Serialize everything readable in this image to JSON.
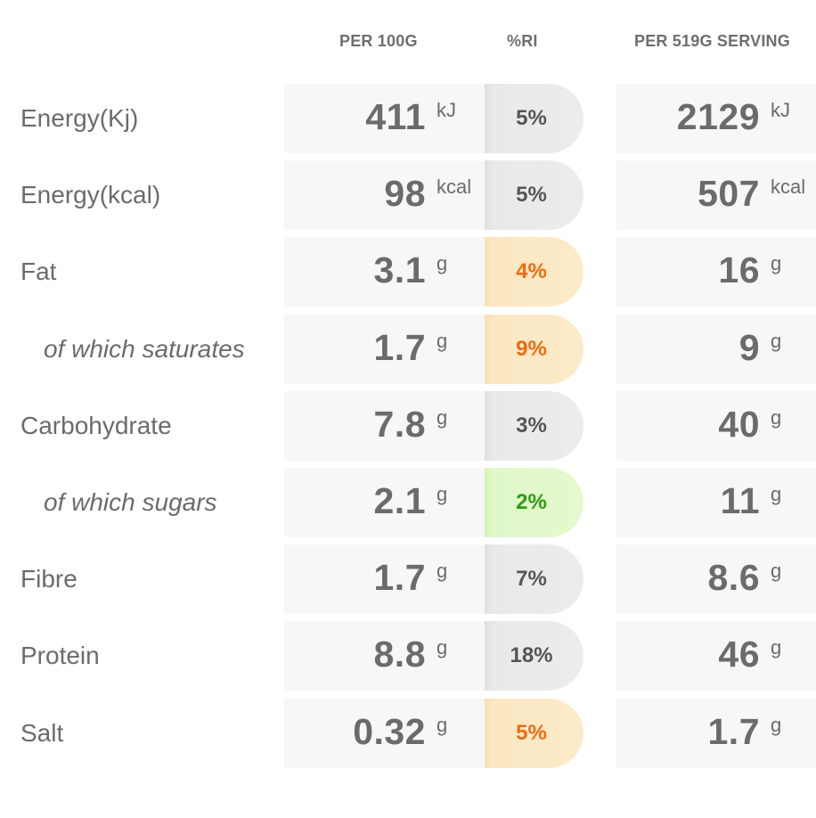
{
  "headers": {
    "per_100g": "PER 100G",
    "ri": "%RI",
    "per_serving": "PER 519G SERVING"
  },
  "rows": [
    {
      "label": "Energy(Kj)",
      "sub": false,
      "per100_value": "411",
      "per100_unit": "kJ",
      "ri": "5%",
      "ri_level": "grey",
      "serving_value": "2129",
      "serving_unit": "kJ"
    },
    {
      "label": "Energy(kcal)",
      "sub": false,
      "per100_value": "98",
      "per100_unit": "kcal",
      "ri": "5%",
      "ri_level": "grey",
      "serving_value": "507",
      "serving_unit": "kcal"
    },
    {
      "label": "Fat",
      "sub": false,
      "per100_value": "3.1",
      "per100_unit": "g",
      "ri": "4%",
      "ri_level": "amber",
      "serving_value": "16",
      "serving_unit": "g"
    },
    {
      "label": "of which saturates",
      "sub": true,
      "per100_value": "1.7",
      "per100_unit": "g",
      "ri": "9%",
      "ri_level": "amber",
      "serving_value": "9",
      "serving_unit": "g"
    },
    {
      "label": "Carbohydrate",
      "sub": false,
      "per100_value": "7.8",
      "per100_unit": "g",
      "ri": "3%",
      "ri_level": "grey",
      "serving_value": "40",
      "serving_unit": "g"
    },
    {
      "label": "of which sugars",
      "sub": true,
      "per100_value": "2.1",
      "per100_unit": "g",
      "ri": "2%",
      "ri_level": "green",
      "serving_value": "11",
      "serving_unit": "g"
    },
    {
      "label": "Fibre",
      "sub": false,
      "per100_value": "1.7",
      "per100_unit": "g",
      "ri": "7%",
      "ri_level": "grey",
      "serving_value": "8.6",
      "serving_unit": "g"
    },
    {
      "label": "Protein",
      "sub": false,
      "per100_value": "8.8",
      "per100_unit": "g",
      "ri": "18%",
      "ri_level": "grey",
      "serving_value": "46",
      "serving_unit": "g"
    },
    {
      "label": "Salt",
      "sub": false,
      "per100_value": "0.32",
      "per100_unit": "g",
      "ri": "5%",
      "ri_level": "amber",
      "serving_value": "1.7",
      "serving_unit": "g"
    }
  ],
  "colors": {
    "grey_ri_bg": "#ececec",
    "amber_ri_bg": "#fcebc9",
    "amber_ri_text": "#f06a10",
    "green_ri_bg": "#e4f9cd",
    "green_ri_text": "#2a9d14"
  }
}
